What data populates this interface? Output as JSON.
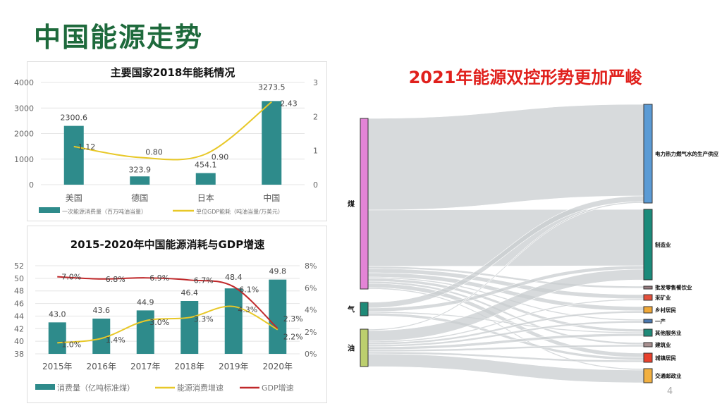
{
  "slide": {
    "title": "中国能源走势",
    "right_title": "2021年能源双控形势更加严峻",
    "page_number": "4"
  },
  "colors": {
    "bar": "#2e8b8b",
    "energy_line": "#e8c828",
    "gdp_line": "#c0282a",
    "title_green": "#1e6a3c",
    "title_red": "#e0201c",
    "flow": "#c9cdd0"
  },
  "chart_data": [
    {
      "type": "bar",
      "title": "主要国家2018年能耗情况",
      "categories": [
        "美国",
        "德国",
        "日本",
        "中国"
      ],
      "series": [
        {
          "name": "一次能源消费量（百万吨油当量）",
          "kind": "bar",
          "axis": "left",
          "values": [
            2300.6,
            323.9,
            454.1,
            3273.5
          ],
          "labels": [
            "2300.6",
            "323.9",
            "454.1",
            "3273.5"
          ]
        },
        {
          "name": "单位GDP能耗（吨油当量/万美元）",
          "kind": "line",
          "axis": "right",
          "values": [
            1.12,
            0.8,
            0.9,
            2.43
          ],
          "labels": [
            "1.12",
            "0.80",
            "0.90",
            "2.43"
          ]
        }
      ],
      "ylim": [
        0,
        4000
      ],
      "yticks": [
        "0",
        "1000",
        "2000",
        "3000",
        "4000"
      ],
      "y2lim": [
        0,
        3
      ],
      "y2ticks": [
        "0",
        "1",
        "2",
        "3"
      ],
      "legend": "bottom"
    },
    {
      "type": "bar",
      "title": "2015-2020年中国能源消耗与GDP增速",
      "categories": [
        "2015年",
        "2016年",
        "2017年",
        "2018年",
        "2019年",
        "2020年"
      ],
      "series": [
        {
          "name": "消费量（亿吨标准煤）",
          "kind": "bar",
          "axis": "left",
          "values": [
            43.0,
            43.6,
            44.9,
            46.4,
            48.4,
            49.8
          ],
          "labels": [
            "43.0",
            "43.6",
            "44.9",
            "46.4",
            "48.4",
            "49.8"
          ]
        },
        {
          "name": "能源消费增速",
          "kind": "line",
          "axis": "right",
          "values": [
            1.0,
            1.4,
            3.0,
            3.3,
            4.3,
            2.2
          ],
          "labels": [
            "1.0%",
            "1.4%",
            "3.0%",
            "3.3%",
            "4.3%",
            "2.2%"
          ]
        },
        {
          "name": "GDP增速",
          "kind": "line",
          "axis": "right",
          "values": [
            7.0,
            6.8,
            6.9,
            6.7,
            6.1,
            2.3
          ],
          "labels": [
            "7.0%",
            "6.8%",
            "6.9%",
            "6.7%",
            "6.1%",
            "2.3%"
          ]
        }
      ],
      "ylim": [
        38,
        52
      ],
      "yticks": [
        "38",
        "40",
        "42",
        "44",
        "46",
        "48",
        "50",
        "52"
      ],
      "y2lim": [
        0,
        8
      ],
      "y2ticks": [
        "0%",
        "2%",
        "4%",
        "6%",
        "8%"
      ],
      "legend": "bottom"
    },
    {
      "type": "sankey",
      "sources": [
        {
          "name": "煤",
          "color": "#e384d6"
        },
        {
          "name": "气",
          "color": "#1f8a78"
        },
        {
          "name": "油",
          "color": "#bccf6e"
        }
      ],
      "targets": [
        {
          "name": "电力热力燃气水的生产供应",
          "color": "#5b9bd5"
        },
        {
          "name": "制造业",
          "color": "#1a8a7a"
        },
        {
          "name": "批发零售餐饮业",
          "color": "#9a7d80"
        },
        {
          "name": "采矿业",
          "color": "#e4503c"
        },
        {
          "name": "乡村居民",
          "color": "#f0a838"
        },
        {
          "name": "一产",
          "color": "#4a78b0"
        },
        {
          "name": "其他服务业",
          "color": "#1f8a78"
        },
        {
          "name": "建筑业",
          "color": "#a89090"
        },
        {
          "name": "城镇居民",
          "color": "#e8402c"
        },
        {
          "name": "交通邮政业",
          "color": "#f2b040"
        }
      ],
      "flows": [
        [
          0,
          0,
          130
        ],
        [
          0,
          1,
          80
        ],
        [
          0,
          2,
          3
        ],
        [
          0,
          3,
          6
        ],
        [
          0,
          4,
          6
        ],
        [
          0,
          5,
          2
        ],
        [
          0,
          6,
          4
        ],
        [
          0,
          7,
          3
        ],
        [
          0,
          8,
          6
        ],
        [
          0,
          9,
          2
        ],
        [
          1,
          0,
          8
        ],
        [
          1,
          1,
          5
        ],
        [
          1,
          6,
          2
        ],
        [
          1,
          8,
          4
        ],
        [
          2,
          0,
          2
        ],
        [
          2,
          1,
          15
        ],
        [
          2,
          3,
          2
        ],
        [
          2,
          4,
          3
        ],
        [
          2,
          5,
          3
        ],
        [
          2,
          6,
          4
        ],
        [
          2,
          7,
          3
        ],
        [
          2,
          8,
          3
        ],
        [
          2,
          9,
          18
        ]
      ]
    }
  ]
}
